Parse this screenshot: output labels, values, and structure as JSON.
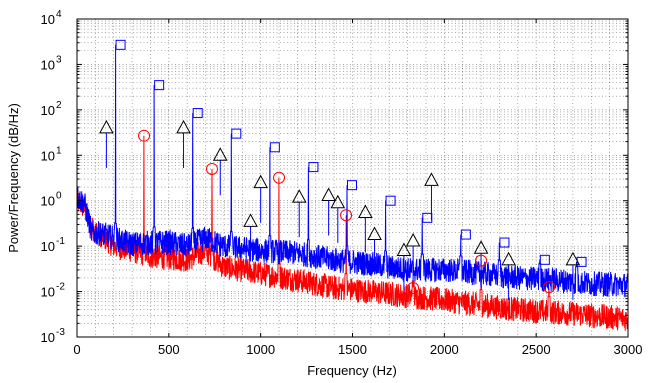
{
  "chart_data": {
    "type": "line",
    "title": "",
    "xlabel": "Frequency (Hz)",
    "ylabel": "Power/Frequency (dB/Hz)",
    "xlim": [
      0,
      3000
    ],
    "ylim": [
      0.001,
      10000
    ],
    "yscale": "log",
    "grid": true,
    "legend": "none",
    "x_ticks": [
      0,
      500,
      1000,
      1500,
      2000,
      2500,
      3000
    ],
    "y_ticks": [
      {
        "value": 0.001,
        "base": "10",
        "exp": "-3"
      },
      {
        "value": 0.01,
        "base": "10",
        "exp": "-2"
      },
      {
        "value": 0.1,
        "base": "10",
        "exp": "-1"
      },
      {
        "value": 1,
        "base": "10",
        "exp": "0"
      },
      {
        "value": 10,
        "base": "10",
        "exp": "1"
      },
      {
        "value": 100,
        "base": "10",
        "exp": "2"
      },
      {
        "value": 1000,
        "base": "10",
        "exp": "3"
      },
      {
        "value": 10000,
        "base": "10",
        "exp": "4"
      }
    ],
    "series": [
      {
        "color": "#0000ff",
        "noise_floor": [
          [
            0,
            1.2
          ],
          [
            40,
            0.9
          ],
          [
            80,
            0.2
          ],
          [
            150,
            0.18
          ],
          [
            200,
            0.15
          ],
          [
            300,
            0.11
          ],
          [
            400,
            0.12
          ],
          [
            500,
            0.12
          ],
          [
            600,
            0.1
          ],
          [
            700,
            0.15
          ],
          [
            800,
            0.1
          ],
          [
            1000,
            0.08
          ],
          [
            1200,
            0.07
          ],
          [
            1400,
            0.05
          ],
          [
            1600,
            0.04
          ],
          [
            1800,
            0.03
          ],
          [
            2000,
            0.03
          ],
          [
            2200,
            0.025
          ],
          [
            2400,
            0.02
          ],
          [
            2600,
            0.018
          ],
          [
            2800,
            0.015
          ],
          [
            3000,
            0.014
          ]
        ],
        "peaks": [
          [
            210,
            2700
          ],
          [
            420,
            350
          ],
          [
            630,
            85
          ],
          [
            840,
            30
          ],
          [
            1050,
            15
          ],
          [
            1260,
            5.5
          ],
          [
            1470,
            2.2
          ],
          [
            1680,
            1.0
          ],
          [
            1880,
            0.42
          ],
          [
            2090,
            0.18
          ],
          [
            2300,
            0.12
          ],
          [
            2520,
            0.05
          ],
          [
            2720,
            0.045
          ]
        ],
        "marker": "square"
      },
      {
        "color": "#000000",
        "peaks": [
          [
            160,
            40
          ],
          [
            580,
            40
          ],
          [
            780,
            10
          ],
          [
            945,
            0.35
          ],
          [
            1000,
            2.5
          ],
          [
            1210,
            1.2
          ],
          [
            1370,
            1.3
          ],
          [
            1420,
            0.9
          ],
          [
            1570,
            0.55
          ],
          [
            1620,
            0.18
          ],
          [
            1780,
            0.08
          ],
          [
            1830,
            0.13
          ],
          [
            1930,
            2.8
          ],
          [
            2200,
            0.09
          ],
          [
            2350,
            0.05
          ],
          [
            2700,
            0.05
          ]
        ],
        "marker": "triangle"
      },
      {
        "color": "#ff0000",
        "noise_floor": [
          [
            0,
            1.0
          ],
          [
            40,
            0.7
          ],
          [
            80,
            0.25
          ],
          [
            160,
            0.14
          ],
          [
            200,
            0.1
          ],
          [
            300,
            0.08
          ],
          [
            400,
            0.06
          ],
          [
            500,
            0.055
          ],
          [
            600,
            0.05
          ],
          [
            700,
            0.08
          ],
          [
            800,
            0.035
          ],
          [
            1000,
            0.025
          ],
          [
            1200,
            0.018
          ],
          [
            1400,
            0.012
          ],
          [
            1600,
            0.01
          ],
          [
            1800,
            0.008
          ],
          [
            2000,
            0.0065
          ],
          [
            2200,
            0.005
          ],
          [
            2400,
            0.004
          ],
          [
            2600,
            0.0035
          ],
          [
            2800,
            0.003
          ],
          [
            3000,
            0.0025
          ]
        ],
        "peaks": [
          [
            365,
            27
          ],
          [
            735,
            5.0
          ],
          [
            1100,
            3.2
          ],
          [
            1465,
            0.48
          ],
          [
            1830,
            0.012
          ],
          [
            2200,
            0.048
          ],
          [
            2570,
            0.0125
          ]
        ],
        "marker": "circle"
      }
    ]
  }
}
